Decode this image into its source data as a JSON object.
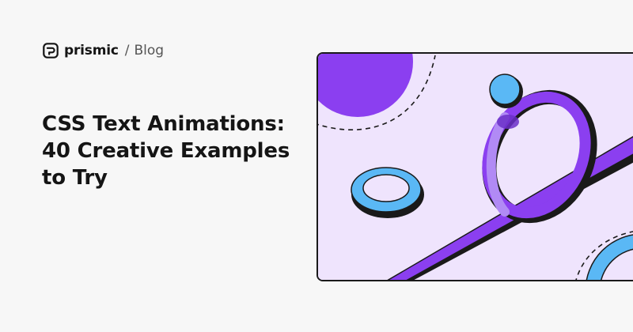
{
  "brand": {
    "logo_icon": "prismic-logo-icon",
    "name": "prismic",
    "separator": "/",
    "section": "Blog"
  },
  "article": {
    "title": "CSS Text Animations: 40 Creative Examples to Try"
  },
  "colors": {
    "background": "#f7f7f7",
    "text": "#151515",
    "hero_background": "#efe4fd",
    "purple": "#8b3ff0",
    "light_purple": "#b18af5",
    "blue": "#5ab8f5",
    "outline": "#1a1a1a"
  }
}
